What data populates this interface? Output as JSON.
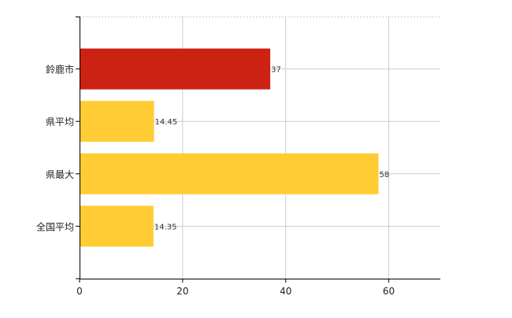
{
  "chart_data": {
    "type": "bar",
    "orientation": "horizontal",
    "title": "",
    "xlabel": "",
    "ylabel": "",
    "categories": [
      "鈴鹿市",
      "県平均",
      "県最大",
      "全国平均"
    ],
    "values": [
      37,
      14.45,
      58,
      14.35
    ],
    "value_labels": [
      "37",
      "14.45",
      "58",
      "14.35"
    ],
    "bar_colors": [
      "#cc2213",
      "#ffcc33",
      "#ffcc33",
      "#ffcc33"
    ],
    "xlim": [
      0,
      70
    ],
    "xticks": [
      0,
      20,
      40,
      60
    ],
    "xtick_labels": [
      "0",
      "20",
      "40",
      "60"
    ],
    "grid": true,
    "legend": "none"
  }
}
